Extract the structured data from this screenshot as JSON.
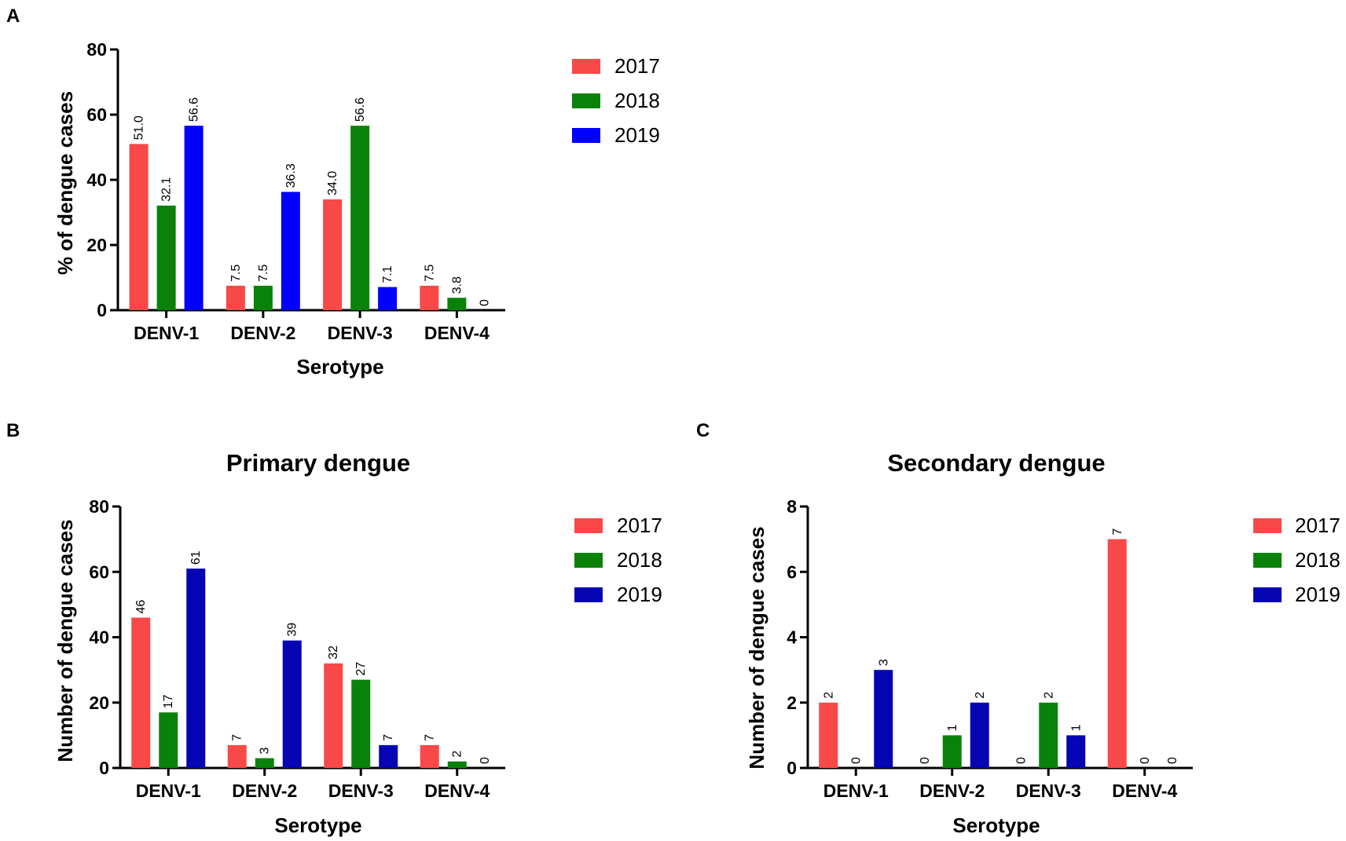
{
  "figure": {
    "panels": [
      "A",
      "B",
      "C"
    ]
  },
  "chart_data": [
    {
      "panel": "A",
      "type": "bar",
      "title": "",
      "xlabel": "Serotype",
      "ylabel": "% of dengue cases",
      "ylim": [
        0,
        80
      ],
      "yticks": [
        "0",
        "20",
        "40",
        "60",
        "80"
      ],
      "categories": [
        "DENV-1",
        "DENV-2",
        "DENV-3",
        "DENV-4"
      ],
      "series": [
        {
          "name": "2017",
          "color": "#f94848",
          "values": [
            51.0,
            7.5,
            34.0,
            7.5
          ],
          "labels": [
            "51.0",
            "7.5",
            "34.0",
            "7.5"
          ]
        },
        {
          "name": "2018",
          "color": "#0a820a",
          "values": [
            32.1,
            7.5,
            56.6,
            3.8
          ],
          "labels": [
            "32.1",
            "7.5",
            "56.6",
            "3.8"
          ]
        },
        {
          "name": "2019",
          "color": "#0000ff",
          "values": [
            56.6,
            36.3,
            7.1,
            0
          ],
          "labels": [
            "56.6",
            "36.3",
            "7.1",
            "0"
          ]
        }
      ],
      "legend": "right"
    },
    {
      "panel": "B",
      "type": "bar",
      "title": "Primary dengue",
      "xlabel": "Serotype",
      "ylabel": "Number of dengue cases",
      "ylim": [
        0,
        80
      ],
      "yticks": [
        "0",
        "20",
        "40",
        "60",
        "80"
      ],
      "categories": [
        "DENV-1",
        "DENV-2",
        "DENV-3",
        "DENV-4"
      ],
      "series": [
        {
          "name": "2017",
          "color": "#f94848",
          "values": [
            46,
            7,
            32,
            7
          ],
          "labels": [
            "46",
            "7",
            "32",
            "7"
          ]
        },
        {
          "name": "2018",
          "color": "#0a820a",
          "values": [
            17,
            3,
            27,
            2
          ],
          "labels": [
            "17",
            "3",
            "27",
            "2"
          ]
        },
        {
          "name": "2019",
          "color": "#0505b4",
          "values": [
            61,
            39,
            7,
            0
          ],
          "labels": [
            "61",
            "39",
            "7",
            "0"
          ]
        }
      ],
      "legend": "right"
    },
    {
      "panel": "C",
      "type": "bar",
      "title": "Secondary dengue",
      "xlabel": "Serotype",
      "ylabel": "Number of dengue cases",
      "ylim": [
        0,
        8
      ],
      "yticks": [
        "0",
        "2",
        "4",
        "6",
        "8"
      ],
      "categories": [
        "DENV-1",
        "DENV-2",
        "DENV-3",
        "DENV-4"
      ],
      "series": [
        {
          "name": "2017",
          "color": "#f94848",
          "values": [
            2,
            0,
            0,
            7
          ],
          "labels": [
            "2",
            "0",
            "0",
            "7"
          ]
        },
        {
          "name": "2018",
          "color": "#0a820a",
          "values": [
            0,
            1,
            2,
            0
          ],
          "labels": [
            "0",
            "1",
            "2",
            "0"
          ]
        },
        {
          "name": "2019",
          "color": "#0505b4",
          "values": [
            3,
            2,
            1,
            0
          ],
          "labels": [
            "3",
            "2",
            "1",
            "0"
          ]
        }
      ],
      "legend": "right"
    }
  ]
}
